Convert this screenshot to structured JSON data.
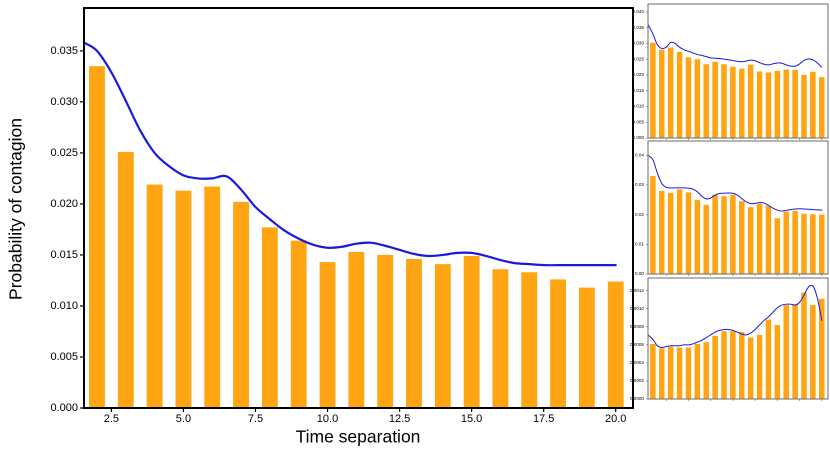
{
  "figure": {
    "bar_color": "#FFA513",
    "line_color": "#1A1ADF",
    "axis_color": "#000000",
    "subplot_border_color": "#6b6b6b",
    "background": "#ffffff"
  },
  "chart_data": [
    {
      "id": "main",
      "type": "bar",
      "title": "",
      "xlabel": "Time separation",
      "ylabel": "Probability of contagion",
      "xlim": [
        1.55,
        20.6
      ],
      "ylim": [
        0,
        0.0392
      ],
      "bar_width": 0.55,
      "categories": [
        2,
        3,
        4,
        5,
        6,
        7,
        8,
        9,
        10,
        11,
        12,
        13,
        14,
        15,
        16,
        17,
        18,
        19,
        20
      ],
      "values": [
        0.0335,
        0.0251,
        0.0219,
        0.0213,
        0.0217,
        0.0202,
        0.0177,
        0.0164,
        0.0143,
        0.0153,
        0.015,
        0.0146,
        0.0141,
        0.0149,
        0.0136,
        0.0133,
        0.0126,
        0.0118,
        0.0124
      ],
      "series": [
        {
          "name": "kde-smoothed-probability",
          "type": "line",
          "x": [
            1.55,
            2,
            2.5,
            3,
            3.5,
            4,
            4.5,
            5,
            5.5,
            6,
            6.5,
            7,
            7.5,
            8,
            8.5,
            9,
            9.5,
            10,
            10.5,
            11,
            11.5,
            12,
            12.5,
            13,
            13.5,
            14,
            14.5,
            15,
            15.5,
            16,
            16.5,
            17,
            17.5,
            18,
            18.5,
            19,
            19.5,
            20
          ],
          "y": [
            0.0358,
            0.035,
            0.0329,
            0.0301,
            0.0272,
            0.025,
            0.0237,
            0.0228,
            0.0225,
            0.0225,
            0.0227,
            0.0214,
            0.0197,
            0.0185,
            0.0174,
            0.0166,
            0.016,
            0.0157,
            0.0158,
            0.0161,
            0.0162,
            0.0159,
            0.0155,
            0.0151,
            0.0149,
            0.015,
            0.0152,
            0.0152,
            0.0149,
            0.0145,
            0.0142,
            0.0141,
            0.014,
            0.014,
            0.014,
            0.014,
            0.014,
            0.014
          ]
        }
      ],
      "yticks": [
        0,
        0.005,
        0.01,
        0.015,
        0.02,
        0.025,
        0.03,
        0.035
      ],
      "ytick_labels": [
        "0.000",
        "0.005",
        "0.010",
        "0.015",
        "0.020",
        "0.025",
        "0.030",
        "0.035"
      ],
      "xticks": [
        2.5,
        5,
        7.5,
        10,
        12.5,
        15,
        17.5,
        20
      ],
      "xtick_labels": [
        "2.5",
        "5.0",
        "7.5",
        "10.0",
        "12.5",
        "15.0",
        "17.5",
        "20.0"
      ],
      "grid": false,
      "legend": "none"
    },
    {
      "id": "subplot-top",
      "type": "bar",
      "title": "",
      "xlabel": "",
      "ylabel": "",
      "xlim": [
        0.45,
        20.7
      ],
      "ylim": [
        0,
        0.0425
      ],
      "bar_width": 0.62,
      "categories": [
        1,
        2,
        3,
        4,
        5,
        6,
        7,
        8,
        9,
        10,
        11,
        12,
        13,
        14,
        15,
        16,
        17,
        18,
        19,
        20
      ],
      "values": [
        0.0302,
        0.028,
        0.0287,
        0.0273,
        0.0256,
        0.025,
        0.0234,
        0.0242,
        0.0234,
        0.0226,
        0.022,
        0.0233,
        0.0211,
        0.0208,
        0.0213,
        0.0217,
        0.0216,
        0.02,
        0.021,
        0.0193
      ],
      "series": [
        {
          "name": "kde-smoothed-probability",
          "type": "line",
          "x": [
            0.45,
            1,
            1.5,
            2,
            2.5,
            3,
            3.5,
            4,
            4.5,
            5,
            5.5,
            6,
            6.5,
            7,
            7.5,
            8,
            8.5,
            9,
            9.5,
            10,
            10.5,
            11,
            11.5,
            12,
            12.5,
            13,
            13.5,
            14,
            14.5,
            15,
            15.5,
            16,
            16.5,
            17,
            17.5,
            18,
            18.5,
            19,
            19.5,
            20
          ],
          "y": [
            0.036,
            0.033,
            0.0296,
            0.0284,
            0.0288,
            0.0303,
            0.03,
            0.0288,
            0.028,
            0.0275,
            0.027,
            0.0265,
            0.0262,
            0.0258,
            0.0254,
            0.0253,
            0.0252,
            0.025,
            0.0248,
            0.0246,
            0.0243,
            0.0242,
            0.0244,
            0.0247,
            0.0245,
            0.0239,
            0.0234,
            0.0232,
            0.0235,
            0.0238,
            0.0237,
            0.0232,
            0.0228,
            0.0228,
            0.0235,
            0.0246,
            0.0251,
            0.0248,
            0.0238,
            0.0225
          ]
        }
      ],
      "yticks": [
        0,
        0.005,
        0.01,
        0.015,
        0.02,
        0.025,
        0.03,
        0.035,
        0.04
      ],
      "ytick_labels": [
        "0.000",
        "0.005",
        "0.010",
        "0.015",
        "0.020",
        "0.025",
        "0.030",
        "0.035",
        "0.040"
      ],
      "xticks": [
        2.5,
        5,
        7.5,
        10,
        12.5,
        15,
        17.5,
        20
      ],
      "xtick_labels": [
        "",
        "",
        "",
        "",
        "",
        "",
        "",
        ""
      ],
      "grid": false,
      "legend": "none"
    },
    {
      "id": "subplot-middle",
      "type": "bar",
      "title": "",
      "xlabel": "",
      "ylabel": "",
      "xlim": [
        0.45,
        20.7
      ],
      "ylim": [
        0,
        0.0448
      ],
      "bar_width": 0.62,
      "categories": [
        1,
        2,
        3,
        4,
        5,
        6,
        7,
        8,
        9,
        10,
        11,
        12,
        13,
        14,
        15,
        16,
        17,
        18,
        19,
        20
      ],
      "values": [
        0.033,
        0.028,
        0.0273,
        0.0285,
        0.0275,
        0.025,
        0.0233,
        0.0267,
        0.0262,
        0.0267,
        0.0245,
        0.0225,
        0.0237,
        0.023,
        0.0188,
        0.021,
        0.0213,
        0.0203,
        0.0201,
        0.02
      ],
      "series": [
        {
          "name": "kde-smoothed-probability",
          "type": "line",
          "x": [
            0.45,
            1,
            1.5,
            2,
            2.5,
            3,
            3.5,
            4,
            4.5,
            5,
            5.5,
            6,
            6.5,
            7,
            7.5,
            8,
            8.5,
            9,
            9.5,
            10,
            10.5,
            11,
            11.5,
            12,
            12.5,
            13,
            13.5,
            14,
            14.5,
            15,
            15.5,
            16,
            16.5,
            17,
            17.5,
            18,
            18.5,
            19,
            19.5,
            20
          ],
          "y": [
            0.04,
            0.0385,
            0.034,
            0.0305,
            0.0292,
            0.029,
            0.029,
            0.029,
            0.029,
            0.0289,
            0.0286,
            0.0277,
            0.0262,
            0.0253,
            0.0256,
            0.0266,
            0.0271,
            0.0272,
            0.0273,
            0.0272,
            0.0266,
            0.0254,
            0.0243,
            0.0237,
            0.0238,
            0.0241,
            0.0239,
            0.0231,
            0.0222,
            0.0215,
            0.0212,
            0.0214,
            0.0217,
            0.0219,
            0.022,
            0.0219,
            0.0218,
            0.0217,
            0.0216,
            0.0215
          ]
        }
      ],
      "yticks": [
        0,
        0.01,
        0.02,
        0.03,
        0.04
      ],
      "ytick_labels": [
        "0.00",
        "0.01",
        "0.02",
        "0.03",
        "0.04"
      ],
      "xticks": [
        2.5,
        5,
        7.5,
        10,
        12.5,
        15,
        17.5,
        20
      ],
      "xtick_labels": [
        "",
        "",
        "",
        "",
        "",
        "",
        "",
        ""
      ],
      "grid": false,
      "legend": "none"
    },
    {
      "id": "subplot-bottom",
      "type": "bar",
      "title": "",
      "xlabel": "",
      "ylabel": "",
      "xlim": [
        0.45,
        20.7
      ],
      "ylim": [
        0,
        0.00134
      ],
      "bar_width": 0.62,
      "categories": [
        1,
        2,
        3,
        4,
        5,
        6,
        7,
        8,
        9,
        10,
        11,
        12,
        13,
        14,
        15,
        16,
        17,
        18,
        19,
        20
      ],
      "values": [
        0.00061,
        0.00056,
        0.00058,
        0.00057,
        0.00057,
        0.00061,
        0.00063,
        0.0007,
        0.00075,
        0.00075,
        0.00074,
        0.00068,
        0.00071,
        0.00088,
        0.00082,
        0.00104,
        0.00105,
        0.00118,
        0.00104,
        0.00111
      ],
      "series": [
        {
          "name": "kde-smoothed-probability",
          "type": "line",
          "x": [
            0.45,
            1,
            1.5,
            2,
            2.5,
            3,
            3.5,
            4,
            4.5,
            5,
            5.5,
            6,
            6.5,
            7,
            7.5,
            8,
            8.5,
            9,
            9.5,
            10,
            10.5,
            11,
            11.5,
            12,
            12.5,
            13,
            13.5,
            14,
            14.5,
            15,
            15.5,
            16,
            16.5,
            17,
            17.5,
            18,
            18.5,
            19,
            19.5,
            20
          ],
          "y": [
            0.00071,
            0.00066,
            0.00059,
            0.00057,
            0.00058,
            0.00059,
            0.00059,
            0.00059,
            0.0006,
            0.0006,
            0.00061,
            0.00063,
            0.00065,
            0.00068,
            0.00071,
            0.00074,
            0.00076,
            0.00077,
            0.00077,
            0.00076,
            0.00074,
            0.00072,
            0.00071,
            0.00073,
            0.00077,
            0.00082,
            0.00087,
            0.00091,
            0.00096,
            0.00101,
            0.00104,
            0.00105,
            0.00105,
            0.00104,
            0.00107,
            0.00115,
            0.00124,
            0.00125,
            0.00112,
            0.00087
          ]
        }
      ],
      "yticks": [
        0,
        0.0002,
        0.0004,
        0.0006,
        0.0008,
        0.001,
        0.0012
      ],
      "ytick_labels": [
        "0.0000",
        "0.0002",
        "0.0004",
        "0.0006",
        "0.0008",
        "0.0010",
        "0.0012"
      ],
      "xticks": [
        2.5,
        5,
        7.5,
        10,
        12.5,
        15,
        17.5,
        20
      ],
      "xtick_labels": [
        "",
        "",
        "",
        "",
        "",
        "",
        "",
        ""
      ],
      "grid": false,
      "legend": "none"
    }
  ]
}
